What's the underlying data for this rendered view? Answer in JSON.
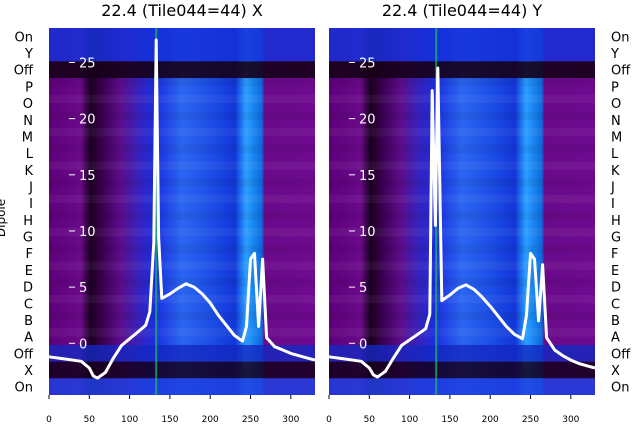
{
  "chart_data": [
    {
      "type": "heatmap",
      "title": "22.4 (Tile044=44) X",
      "xlabel": "",
      "ylabel": "Dipole",
      "xlim": [
        0,
        330
      ],
      "xticks": [
        "0",
        "50",
        "100",
        "150",
        "200",
        "250",
        "300"
      ],
      "row_labels": [
        "On",
        "Y",
        "Off",
        "P",
        "O",
        "N",
        "M",
        "L",
        "K",
        "J",
        "I",
        "H",
        "G",
        "F",
        "E",
        "D",
        "C",
        "B",
        "A",
        "Off",
        "X",
        "On"
      ],
      "overlay_yticks": [
        "25",
        "20",
        "15",
        "10",
        "5",
        "0"
      ],
      "overlay_ylim": [
        -3,
        27
      ],
      "overlay_series": {
        "x": [
          0,
          20,
          40,
          50,
          55,
          60,
          70,
          80,
          90,
          100,
          110,
          120,
          125,
          130,
          133,
          136,
          140,
          150,
          160,
          170,
          180,
          190,
          200,
          210,
          220,
          230,
          240,
          245,
          250,
          255,
          260,
          265,
          270,
          280,
          290,
          300,
          310,
          320,
          330
        ],
        "y": [
          -1.2,
          -1.4,
          -1.6,
          -2.2,
          -2.9,
          -3.1,
          -2.6,
          -1.3,
          -0.2,
          0.4,
          1.0,
          1.6,
          2.8,
          9.0,
          27.0,
          9.5,
          4.0,
          4.4,
          4.9,
          5.3,
          5.0,
          4.4,
          3.6,
          2.5,
          1.6,
          0.7,
          0.2,
          1.5,
          7.5,
          8.0,
          1.5,
          7.5,
          0.5,
          -0.3,
          -0.6,
          -0.9,
          -1.1,
          -1.3,
          -1.5
        ]
      }
    },
    {
      "type": "heatmap",
      "title": "22.4 (Tile044=44) Y",
      "xlabel": "",
      "ylabel": "",
      "xlim": [
        0,
        330
      ],
      "xticks": [
        "0",
        "50",
        "100",
        "150",
        "200",
        "250",
        "300"
      ],
      "row_labels": [
        "On",
        "Y",
        "Off",
        "P",
        "O",
        "N",
        "M",
        "L",
        "K",
        "J",
        "I",
        "H",
        "G",
        "F",
        "E",
        "D",
        "C",
        "B",
        "A",
        "Off",
        "X",
        "On"
      ],
      "overlay_yticks": [
        "25",
        "20",
        "15",
        "10",
        "5",
        "0"
      ],
      "overlay_ylim": [
        -3,
        27
      ],
      "overlay_series": {
        "x": [
          0,
          20,
          40,
          50,
          55,
          60,
          70,
          80,
          90,
          100,
          110,
          120,
          125,
          128,
          132,
          135,
          140,
          150,
          160,
          170,
          180,
          190,
          200,
          210,
          220,
          230,
          240,
          245,
          250,
          255,
          260,
          265,
          270,
          280,
          290,
          300,
          310,
          320,
          330
        ],
        "y": [
          -1.2,
          -1.4,
          -1.6,
          -2.2,
          -2.8,
          -3.0,
          -2.5,
          -1.3,
          -0.2,
          0.3,
          0.8,
          1.3,
          2.6,
          22.5,
          10.5,
          24.5,
          3.8,
          4.3,
          4.9,
          5.2,
          4.8,
          4.1,
          3.3,
          2.4,
          1.5,
          0.8,
          0.4,
          2.5,
          8.0,
          7.5,
          2.0,
          7.0,
          0.5,
          -0.6,
          -1.1,
          -1.5,
          -1.8,
          -2.0,
          -2.2
        ]
      }
    }
  ]
}
